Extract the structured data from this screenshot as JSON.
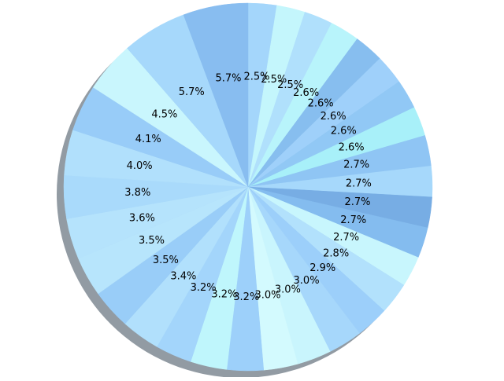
{
  "chart_data": {
    "type": "pie",
    "title": "",
    "start_angle_deg": 90,
    "direction": "clockwise",
    "shadow": true,
    "slices": [
      {
        "label": "2.5%",
        "value": 2.5,
        "color": "#a4d6fb"
      },
      {
        "label": "2.5%",
        "value": 2.5,
        "color": "#c4f6fc"
      },
      {
        "label": "2.5%",
        "value": 2.5,
        "color": "#b0e0fc"
      },
      {
        "label": "2.6%",
        "value": 2.6,
        "color": "#b8f4fb"
      },
      {
        "label": "2.6%",
        "value": 2.6,
        "color": "#87beef"
      },
      {
        "label": "2.6%",
        "value": 2.6,
        "color": "#9fd0fa"
      },
      {
        "label": "2.6%",
        "value": 2.6,
        "color": "#91c8f5"
      },
      {
        "label": "2.6%",
        "value": 2.6,
        "color": "#a8f0f9"
      },
      {
        "label": "2.7%",
        "value": 2.7,
        "color": "#8fc5f4"
      },
      {
        "label": "2.7%",
        "value": 2.7,
        "color": "#a6d8fb"
      },
      {
        "label": "2.7%",
        "value": 2.7,
        "color": "#77ade4"
      },
      {
        "label": "2.7%",
        "value": 2.7,
        "color": "#84bcef"
      },
      {
        "label": "2.7%",
        "value": 2.7,
        "color": "#c8f6fd"
      },
      {
        "label": "2.8%",
        "value": 2.8,
        "color": "#b2e1fc"
      },
      {
        "label": "2.9%",
        "value": 2.9,
        "color": "#9ccffa"
      },
      {
        "label": "3.0%",
        "value": 3.0,
        "color": "#a6d7fb"
      },
      {
        "label": "3.0%",
        "value": 3.0,
        "color": "#c9f5fd"
      },
      {
        "label": "3.0%",
        "value": 3.0,
        "color": "#d3fafe"
      },
      {
        "label": "3.2%",
        "value": 3.2,
        "color": "#9dd0fa"
      },
      {
        "label": "3.2%",
        "value": 3.2,
        "color": "#bff6fc"
      },
      {
        "label": "3.2%",
        "value": 3.2,
        "color": "#a3d5fb"
      },
      {
        "label": "3.4%",
        "value": 3.4,
        "color": "#b1e0fc"
      },
      {
        "label": "3.5%",
        "value": 3.5,
        "color": "#99cdf8"
      },
      {
        "label": "3.5%",
        "value": 3.5,
        "color": "#b7e5fc"
      },
      {
        "label": "3.6%",
        "value": 3.6,
        "color": "#b5e3fc"
      },
      {
        "label": "3.8%",
        "value": 3.8,
        "color": "#a9dafb"
      },
      {
        "label": "4.0%",
        "value": 4.0,
        "color": "#b1e0fc"
      },
      {
        "label": "4.1%",
        "value": 4.1,
        "color": "#98ccf8"
      },
      {
        "label": "4.5%",
        "value": 4.5,
        "color": "#c9f6fd"
      },
      {
        "label": "5.7%",
        "value": 5.7,
        "color": "#a6d8fb"
      },
      {
        "label": "5.7%",
        "value": 5.7,
        "color": "#88bdf0"
      }
    ]
  }
}
